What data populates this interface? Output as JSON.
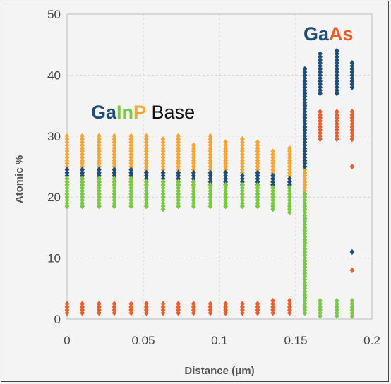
{
  "chart_data": {
    "type": "scatter",
    "xlabel": "Distance (μm)",
    "ylabel": "Atomic %",
    "xlim": [
      0,
      0.2
    ],
    "ylim": [
      0,
      50
    ],
    "x_ticks": [
      "0",
      "0.05",
      "0.1",
      "0.15",
      "0.2"
    ],
    "y_ticks": [
      "0",
      "10",
      "20",
      "30",
      "40",
      "50"
    ],
    "grid": true,
    "annotations": {
      "gainp": [
        {
          "text": "Ga",
          "color": "#1f4e79"
        },
        {
          "text": "In",
          "color": "#7ac943"
        },
        {
          "text": "P",
          "color": "#f7a535"
        },
        {
          "text": " Base",
          "color": "#111111"
        }
      ],
      "gaas": [
        {
          "text": "Ga",
          "color": "#1f4e79"
        },
        {
          "text": "As",
          "color": "#e8612c"
        }
      ]
    },
    "series": [
      {
        "color": "#f7a535",
        "ranges": [
          {
            "x": 0.0,
            "ymin": 22.0,
            "ymax": 30.0
          },
          {
            "x": 0.01,
            "ymin": 22.0,
            "ymax": 30.0
          },
          {
            "x": 0.021,
            "ymin": 22.0,
            "ymax": 30.0
          },
          {
            "x": 0.031,
            "ymin": 22.0,
            "ymax": 30.0
          },
          {
            "x": 0.042,
            "ymin": 22.0,
            "ymax": 30.0
          },
          {
            "x": 0.052,
            "ymin": 22.0,
            "ymax": 30.0
          },
          {
            "x": 0.063,
            "ymin": 22.0,
            "ymax": 29.5
          },
          {
            "x": 0.073,
            "ymin": 22.0,
            "ymax": 30.0
          },
          {
            "x": 0.083,
            "ymin": 21.5,
            "ymax": 28.5
          },
          {
            "x": 0.094,
            "ymin": 21.5,
            "ymax": 30.0
          },
          {
            "x": 0.104,
            "ymin": 21.5,
            "ymax": 29.0
          },
          {
            "x": 0.115,
            "ymin": 21.5,
            "ymax": 29.5
          },
          {
            "x": 0.125,
            "ymin": 21.5,
            "ymax": 29.0
          },
          {
            "x": 0.135,
            "ymin": 21.5,
            "ymax": 27.5
          },
          {
            "x": 0.146,
            "ymin": 21.5,
            "ymax": 28.0
          },
          {
            "x": 0.156,
            "ymin": 20.0,
            "ymax": 27.0
          }
        ]
      },
      {
        "color": "#1f4e79",
        "ranges": [
          {
            "x": 0.0,
            "ymin": 22.5,
            "ymax": 24.5
          },
          {
            "x": 0.01,
            "ymin": 22.5,
            "ymax": 24.5
          },
          {
            "x": 0.021,
            "ymin": 22.5,
            "ymax": 24.5
          },
          {
            "x": 0.031,
            "ymin": 22.5,
            "ymax": 24.5
          },
          {
            "x": 0.042,
            "ymin": 22.5,
            "ymax": 24.5
          },
          {
            "x": 0.052,
            "ymin": 22.5,
            "ymax": 24.0
          },
          {
            "x": 0.063,
            "ymin": 22.5,
            "ymax": 24.0
          },
          {
            "x": 0.073,
            "ymin": 22.0,
            "ymax": 24.0
          },
          {
            "x": 0.083,
            "ymin": 22.0,
            "ymax": 24.0
          },
          {
            "x": 0.094,
            "ymin": 22.0,
            "ymax": 24.0
          },
          {
            "x": 0.104,
            "ymin": 22.0,
            "ymax": 24.0
          },
          {
            "x": 0.115,
            "ymin": 22.0,
            "ymax": 23.5
          },
          {
            "x": 0.125,
            "ymin": 22.0,
            "ymax": 24.0
          },
          {
            "x": 0.135,
            "ymin": 22.0,
            "ymax": 23.5
          },
          {
            "x": 0.146,
            "ymin": 21.5,
            "ymax": 23.0
          },
          {
            "x": 0.156,
            "ymin": 25.0,
            "ymax": 41.0
          },
          {
            "x": 0.166,
            "ymin": 37.0,
            "ymax": 43.5
          },
          {
            "x": 0.177,
            "ymin": 37.0,
            "ymax": 44.0
          },
          {
            "x": 0.187,
            "ymin": 38.0,
            "ymax": 42.0
          }
        ],
        "points": [
          {
            "x": 0.187,
            "y": 11.0
          }
        ]
      },
      {
        "color": "#7ac943",
        "ranges": [
          {
            "x": 0.0,
            "ymin": 18.5,
            "ymax": 23.0
          },
          {
            "x": 0.01,
            "ymin": 18.5,
            "ymax": 23.0
          },
          {
            "x": 0.021,
            "ymin": 18.5,
            "ymax": 23.0
          },
          {
            "x": 0.031,
            "ymin": 18.5,
            "ymax": 23.0
          },
          {
            "x": 0.042,
            "ymin": 18.5,
            "ymax": 23.0
          },
          {
            "x": 0.052,
            "ymin": 18.5,
            "ymax": 22.5
          },
          {
            "x": 0.063,
            "ymin": 18.0,
            "ymax": 22.5
          },
          {
            "x": 0.073,
            "ymin": 18.5,
            "ymax": 22.5
          },
          {
            "x": 0.083,
            "ymin": 18.5,
            "ymax": 22.5
          },
          {
            "x": 0.094,
            "ymin": 18.5,
            "ymax": 22.0
          },
          {
            "x": 0.104,
            "ymin": 18.5,
            "ymax": 22.0
          },
          {
            "x": 0.115,
            "ymin": 18.5,
            "ymax": 22.0
          },
          {
            "x": 0.125,
            "ymin": 18.5,
            "ymax": 22.0
          },
          {
            "x": 0.135,
            "ymin": 18.0,
            "ymax": 21.5
          },
          {
            "x": 0.146,
            "ymin": 17.5,
            "ymax": 21.5
          },
          {
            "x": 0.156,
            "ymin": 1.0,
            "ymax": 20.5
          },
          {
            "x": 0.166,
            "ymin": 0.5,
            "ymax": 3.0
          },
          {
            "x": 0.177,
            "ymin": 0.5,
            "ymax": 3.0
          },
          {
            "x": 0.187,
            "ymin": 0.5,
            "ymax": 3.0
          }
        ]
      },
      {
        "color": "#e8612c",
        "ranges": [
          {
            "x": 0.0,
            "ymin": 1.0,
            "ymax": 2.5
          },
          {
            "x": 0.01,
            "ymin": 1.0,
            "ymax": 2.5
          },
          {
            "x": 0.021,
            "ymin": 1.0,
            "ymax": 2.5
          },
          {
            "x": 0.031,
            "ymin": 1.0,
            "ymax": 2.5
          },
          {
            "x": 0.042,
            "ymin": 1.0,
            "ymax": 2.5
          },
          {
            "x": 0.052,
            "ymin": 1.0,
            "ymax": 2.5
          },
          {
            "x": 0.063,
            "ymin": 1.0,
            "ymax": 2.5
          },
          {
            "x": 0.073,
            "ymin": 1.0,
            "ymax": 2.5
          },
          {
            "x": 0.083,
            "ymin": 1.0,
            "ymax": 2.5
          },
          {
            "x": 0.094,
            "ymin": 1.0,
            "ymax": 2.5
          },
          {
            "x": 0.104,
            "ymin": 1.0,
            "ymax": 2.5
          },
          {
            "x": 0.115,
            "ymin": 1.0,
            "ymax": 2.5
          },
          {
            "x": 0.125,
            "ymin": 1.0,
            "ymax": 2.5
          },
          {
            "x": 0.135,
            "ymin": 1.0,
            "ymax": 3.0
          },
          {
            "x": 0.146,
            "ymin": 1.0,
            "ymax": 3.0
          },
          {
            "x": 0.166,
            "ymin": 29.5,
            "ymax": 34.0
          },
          {
            "x": 0.177,
            "ymin": 29.5,
            "ymax": 34.0
          },
          {
            "x": 0.187,
            "ymin": 29.5,
            "ymax": 34.0
          }
        ],
        "points": [
          {
            "x": 0.187,
            "y": 25.0
          },
          {
            "x": 0.187,
            "y": 8.0
          }
        ]
      }
    ]
  }
}
